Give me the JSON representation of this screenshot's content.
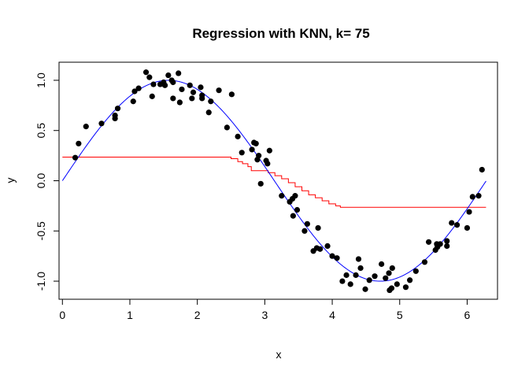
{
  "chart_data": {
    "type": "scatter",
    "title": "Regression with KNN, k= 75",
    "xlabel": "x",
    "ylabel": "y",
    "xlim": [
      -0.05,
      6.45
    ],
    "ylim": [
      -1.18,
      1.18
    ],
    "x_ticks": [
      0,
      1,
      2,
      3,
      4,
      5,
      6
    ],
    "x_tick_labels": [
      "0",
      "1",
      "2",
      "3",
      "4",
      "5",
      "6"
    ],
    "y_ticks": [
      -1.0,
      -0.5,
      0.0,
      0.5,
      1.0
    ],
    "y_tick_labels": [
      "-1.0",
      "-0.5",
      "0.0",
      "0.5",
      "1.0"
    ],
    "grid": false,
    "legend": "none",
    "series": [
      {
        "kind": "scatter",
        "color": "#000000",
        "points": [
          [
            0.19,
            0.23
          ],
          [
            0.24,
            0.37
          ],
          [
            0.35,
            0.54
          ],
          [
            0.58,
            0.57
          ],
          [
            0.78,
            0.62
          ],
          [
            0.78,
            0.65
          ],
          [
            0.82,
            0.72
          ],
          [
            1.05,
            0.79
          ],
          [
            1.07,
            0.89
          ],
          [
            1.13,
            0.92
          ],
          [
            1.24,
            1.08
          ],
          [
            1.29,
            1.03
          ],
          [
            1.33,
            0.84
          ],
          [
            1.35,
            0.96
          ],
          [
            1.45,
            0.96
          ],
          [
            1.5,
            0.98
          ],
          [
            1.52,
            0.95
          ],
          [
            1.57,
            1.05
          ],
          [
            1.62,
            1.0
          ],
          [
            1.64,
            0.98
          ],
          [
            1.64,
            0.82
          ],
          [
            1.72,
            1.07
          ],
          [
            1.74,
            0.78
          ],
          [
            1.77,
            0.91
          ],
          [
            1.89,
            0.95
          ],
          [
            1.92,
            0.82
          ],
          [
            1.94,
            0.88
          ],
          [
            2.05,
            0.93
          ],
          [
            2.07,
            0.82
          ],
          [
            2.07,
            0.85
          ],
          [
            2.17,
            0.68
          ],
          [
            2.2,
            0.79
          ],
          [
            2.32,
            0.9
          ],
          [
            2.44,
            0.53
          ],
          [
            2.51,
            0.86
          ],
          [
            2.6,
            0.44
          ],
          [
            2.66,
            0.28
          ],
          [
            2.81,
            0.31
          ],
          [
            2.84,
            0.38
          ],
          [
            2.87,
            0.37
          ],
          [
            2.89,
            0.21
          ],
          [
            2.91,
            0.25
          ],
          [
            2.94,
            -0.03
          ],
          [
            3.02,
            0.2
          ],
          [
            3.04,
            0.17
          ],
          [
            3.07,
            0.3
          ],
          [
            3.25,
            -0.15
          ],
          [
            3.37,
            -0.21
          ],
          [
            3.41,
            -0.18
          ],
          [
            3.42,
            -0.35
          ],
          [
            3.45,
            -0.15
          ],
          [
            3.48,
            -0.29
          ],
          [
            3.59,
            -0.5
          ],
          [
            3.63,
            -0.43
          ],
          [
            3.72,
            -0.7
          ],
          [
            3.77,
            -0.67
          ],
          [
            3.79,
            -0.47
          ],
          [
            3.82,
            -0.68
          ],
          [
            3.93,
            -0.65
          ],
          [
            4.0,
            -0.75
          ],
          [
            4.07,
            -0.77
          ],
          [
            4.15,
            -1.0
          ],
          [
            4.21,
            -0.94
          ],
          [
            4.27,
            -1.03
          ],
          [
            4.35,
            -0.94
          ],
          [
            4.39,
            -0.78
          ],
          [
            4.42,
            -0.87
          ],
          [
            4.49,
            -1.08
          ],
          [
            4.55,
            -0.99
          ],
          [
            4.63,
            -0.95
          ],
          [
            4.73,
            -0.83
          ],
          [
            4.79,
            -0.97
          ],
          [
            4.84,
            -0.92
          ],
          [
            4.85,
            -1.09
          ],
          [
            4.88,
            -1.07
          ],
          [
            4.89,
            -0.87
          ],
          [
            4.96,
            -1.03
          ],
          [
            5.09,
            -1.06
          ],
          [
            5.15,
            -0.99
          ],
          [
            5.24,
            -0.9
          ],
          [
            5.37,
            -0.81
          ],
          [
            5.43,
            -0.61
          ],
          [
            5.53,
            -0.69
          ],
          [
            5.55,
            -0.63
          ],
          [
            5.56,
            -0.66
          ],
          [
            5.6,
            -0.63
          ],
          [
            5.7,
            -0.65
          ],
          [
            5.7,
            -0.6
          ],
          [
            5.77,
            -0.42
          ],
          [
            5.85,
            -0.44
          ],
          [
            6.0,
            -0.47
          ],
          [
            6.03,
            -0.31
          ],
          [
            6.08,
            -0.16
          ],
          [
            6.17,
            -0.15
          ],
          [
            6.22,
            0.11
          ]
        ]
      },
      {
        "kind": "line",
        "color": "#0000ff",
        "function": "sin",
        "x_range": [
          0,
          6.28
        ]
      },
      {
        "kind": "step",
        "color": "#ff0000",
        "points": [
          [
            0.0,
            0.235
          ],
          [
            2.42,
            0.235
          ],
          [
            2.5,
            0.22
          ],
          [
            2.6,
            0.19
          ],
          [
            2.67,
            0.17
          ],
          [
            2.75,
            0.14
          ],
          [
            2.8,
            0.1
          ],
          [
            2.95,
            0.1
          ],
          [
            3.05,
            0.08
          ],
          [
            3.15,
            0.05
          ],
          [
            3.25,
            0.02
          ],
          [
            3.35,
            -0.02
          ],
          [
            3.45,
            -0.06
          ],
          [
            3.55,
            -0.1
          ],
          [
            3.65,
            -0.14
          ],
          [
            3.75,
            -0.17
          ],
          [
            3.85,
            -0.2
          ],
          [
            3.95,
            -0.23
          ],
          [
            4.05,
            -0.25
          ],
          [
            4.12,
            -0.265
          ],
          [
            6.28,
            -0.265
          ]
        ]
      }
    ]
  }
}
